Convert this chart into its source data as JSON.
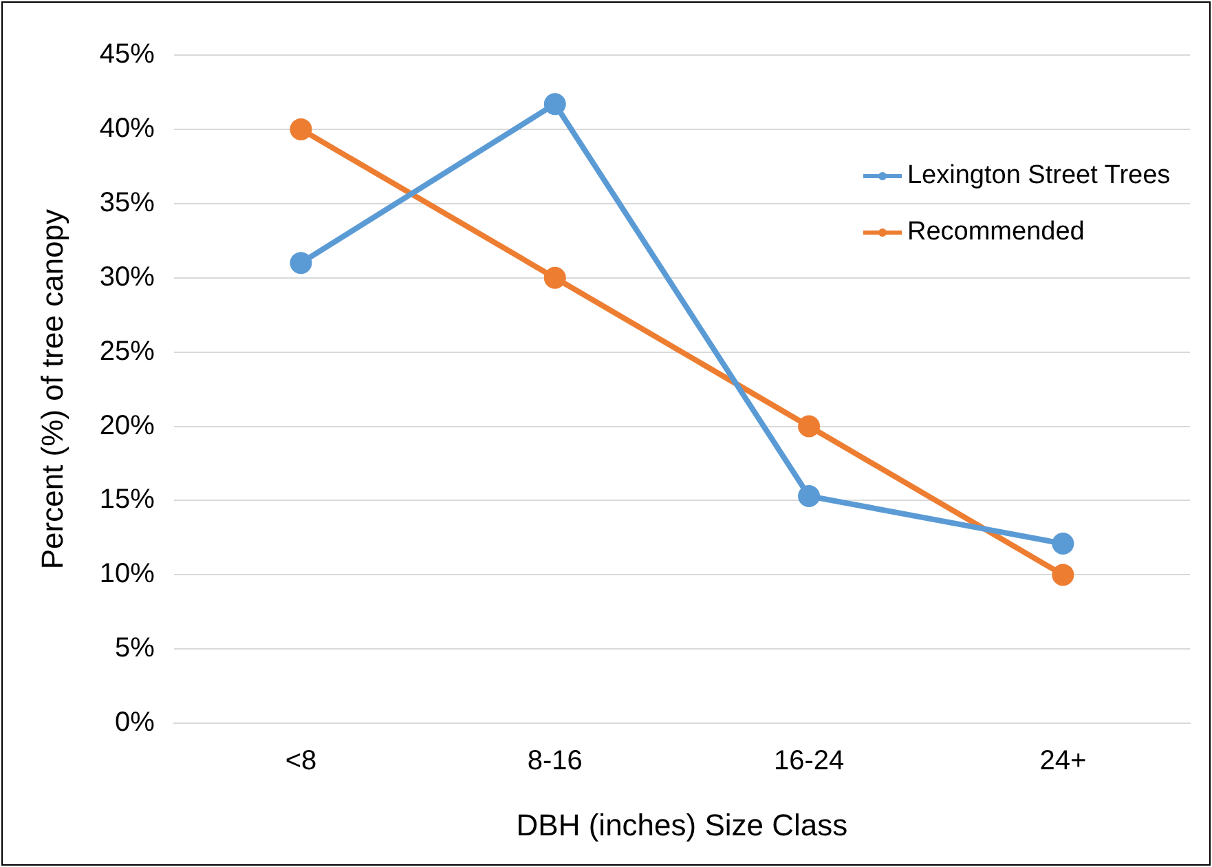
{
  "chart_data": {
    "type": "line",
    "xlabel": "DBH (inches) Size Class",
    "ylabel": "Percent (%) of tree canopy",
    "categories": [
      "<8",
      "8-16",
      "16-24",
      "24+"
    ],
    "series": [
      {
        "name": "Lexington Street Trees",
        "color": "#5b9bd5",
        "values": [
          31,
          41.7,
          15.3,
          12.1
        ]
      },
      {
        "name": "Recommended",
        "color": "#ed7d31",
        "values": [
          40,
          30,
          20,
          10
        ]
      }
    ],
    "ylim": [
      0,
      45
    ],
    "yticks": [
      {
        "value": 0,
        "label": "0%"
      },
      {
        "value": 5,
        "label": "5%"
      },
      {
        "value": 10,
        "label": "10%"
      },
      {
        "value": 15,
        "label": "15%"
      },
      {
        "value": 20,
        "label": "20%"
      },
      {
        "value": 25,
        "label": "25%"
      },
      {
        "value": 30,
        "label": "30%"
      },
      {
        "value": 35,
        "label": "35%"
      },
      {
        "value": 40,
        "label": "40%"
      },
      {
        "value": 45,
        "label": "45%"
      }
    ],
    "grid": "y",
    "legend": "top right",
    "marker": "circle",
    "line_style": "solid"
  }
}
